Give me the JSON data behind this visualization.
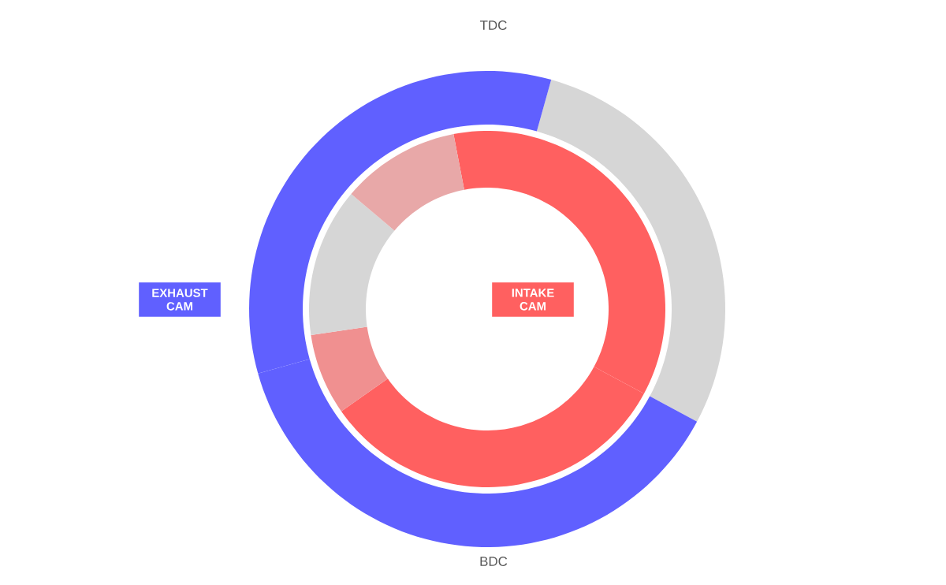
{
  "chart_data": [
    {
      "type": "donut",
      "categories": [
        null,
        null,
        null
      ],
      "values": [
        28.5,
        37.8,
        33.7
      ],
      "colors": [
        "#d6d6d6",
        "#6060ff",
        "#6060ff"
      ],
      "annotations": [
        "TDC",
        "BDC",
        "EXHAUST CAM"
      ]
    },
    {
      "type": "donut",
      "categories": [
        null,
        null,
        null,
        null,
        null
      ],
      "values": [
        35.9,
        32.4,
        7.4,
        13.5,
        10.8
      ],
      "colors": [
        "#ff6060",
        "#ff6060",
        "#f09090",
        "#d6d6d6",
        "#e8a8a8"
      ],
      "annotations": [
        "INTAKE CAM"
      ]
    }
  ]
}
